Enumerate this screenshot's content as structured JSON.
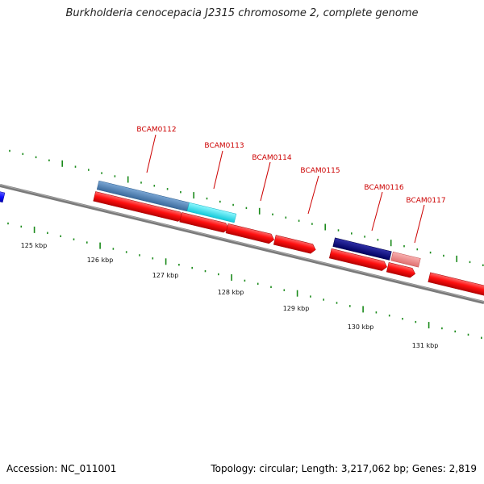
{
  "title": "Burkholderia cenocepacia J2315 chromosome 2, complete genome",
  "footer": {
    "accession": "Accession: NC_011001",
    "summary": "Topology: circular; Length: 3,217,062 bp; Genes: 2,819"
  },
  "scale_labels": [
    "125 kbp",
    "126 kbp",
    "127 kbp",
    "128 kbp",
    "129 kbp",
    "130 kbp",
    "131 kbp"
  ],
  "gene_labels": [
    "BCAM0112",
    "BCAM0113",
    "BCAM0114",
    "BCAM0115",
    "BCAM0116",
    "BCAM0117"
  ],
  "colors": {
    "backbone": "#808080",
    "ticks": "#1a8a1a",
    "forward_cds": "#ff1a1a",
    "blue_feature": "#1a1aff",
    "steelblue_feature": "#4a7eb5",
    "cyan_feature": "#22e8f0",
    "navy_feature": "#0a0a80",
    "pink_feature": "#ef8a8a",
    "label_text": "#cc0000"
  }
}
